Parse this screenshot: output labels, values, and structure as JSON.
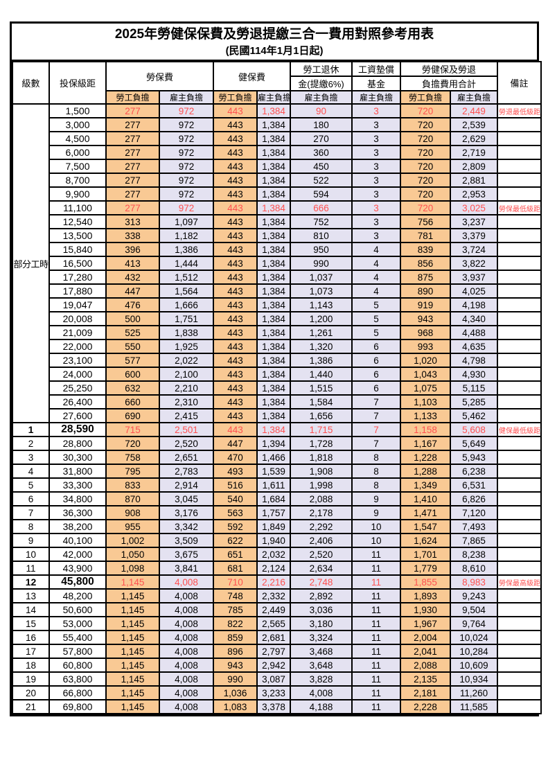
{
  "title": {
    "main": "2025年勞健保保費及勞退提繳三合一費用對照參考用表",
    "sub": "(民國114年1月1日起)"
  },
  "colors": {
    "employee_column_bg": "#F9C994",
    "employer_column_bg": "#E4E2F1",
    "highlight_red": "#FF5050",
    "grid_border": "#000000"
  },
  "table": {
    "header": {
      "level": "級數",
      "bracket": "投保級距",
      "labor_insurance": "勞保費",
      "health_insurance": "健保費",
      "pension_line1": "勞工退休",
      "pension_line2": "金(提繳6%)",
      "wage_fund_line1": "工資墊償",
      "wage_fund_line2": "基金",
      "total_line1": "勞健保及勞退",
      "total_line2": "負擔費用合計",
      "employee_burden": "勞工負擔",
      "employer_burden": "雇主負擔",
      "remark": "備註"
    },
    "part_time_label": "部分工時",
    "rows": [
      {
        "level": "",
        "bracket": "1,500",
        "li_emp": "277",
        "li_er": "972",
        "hi_emp": "443",
        "hi_er": "1,384",
        "pension": "90",
        "fund": "3",
        "tot_emp": "720",
        "tot_er": "2,449",
        "remark": "勞退最低級距",
        "red": true,
        "emph": false
      },
      {
        "level": "",
        "bracket": "3,000",
        "li_emp": "277",
        "li_er": "972",
        "hi_emp": "443",
        "hi_er": "1,384",
        "pension": "180",
        "fund": "3",
        "tot_emp": "720",
        "tot_er": "2,539",
        "remark": "",
        "red": false,
        "emph": false
      },
      {
        "level": "",
        "bracket": "4,500",
        "li_emp": "277",
        "li_er": "972",
        "hi_emp": "443",
        "hi_er": "1,384",
        "pension": "270",
        "fund": "3",
        "tot_emp": "720",
        "tot_er": "2,629",
        "remark": "",
        "red": false,
        "emph": false
      },
      {
        "level": "",
        "bracket": "6,000",
        "li_emp": "277",
        "li_er": "972",
        "hi_emp": "443",
        "hi_er": "1,384",
        "pension": "360",
        "fund": "3",
        "tot_emp": "720",
        "tot_er": "2,719",
        "remark": "",
        "red": false,
        "emph": false
      },
      {
        "level": "",
        "bracket": "7,500",
        "li_emp": "277",
        "li_er": "972",
        "hi_emp": "443",
        "hi_er": "1,384",
        "pension": "450",
        "fund": "3",
        "tot_emp": "720",
        "tot_er": "2,809",
        "remark": "",
        "red": false,
        "emph": false
      },
      {
        "level": "",
        "bracket": "8,700",
        "li_emp": "277",
        "li_er": "972",
        "hi_emp": "443",
        "hi_er": "1,384",
        "pension": "522",
        "fund": "3",
        "tot_emp": "720",
        "tot_er": "2,881",
        "remark": "",
        "red": false,
        "emph": false
      },
      {
        "level": "",
        "bracket": "9,900",
        "li_emp": "277",
        "li_er": "972",
        "hi_emp": "443",
        "hi_er": "1,384",
        "pension": "594",
        "fund": "3",
        "tot_emp": "720",
        "tot_er": "2,953",
        "remark": "",
        "red": false,
        "emph": false
      },
      {
        "level": "",
        "bracket": "11,100",
        "li_emp": "277",
        "li_er": "972",
        "hi_emp": "443",
        "hi_er": "1,384",
        "pension": "666",
        "fund": "3",
        "tot_emp": "720",
        "tot_er": "3,025",
        "remark": "勞保最低級距",
        "red": true,
        "emph": false
      },
      {
        "level": "",
        "bracket": "12,540",
        "li_emp": "313",
        "li_er": "1,097",
        "hi_emp": "443",
        "hi_er": "1,384",
        "pension": "752",
        "fund": "3",
        "tot_emp": "756",
        "tot_er": "3,237",
        "remark": "",
        "red": false,
        "emph": false
      },
      {
        "level": "",
        "bracket": "13,500",
        "li_emp": "338",
        "li_er": "1,182",
        "hi_emp": "443",
        "hi_er": "1,384",
        "pension": "810",
        "fund": "3",
        "tot_emp": "781",
        "tot_er": "3,379",
        "remark": "",
        "red": false,
        "emph": false
      },
      {
        "level": "",
        "bracket": "15,840",
        "li_emp": "396",
        "li_er": "1,386",
        "hi_emp": "443",
        "hi_er": "1,384",
        "pension": "950",
        "fund": "4",
        "tot_emp": "839",
        "tot_er": "3,724",
        "remark": "",
        "red": false,
        "emph": false
      },
      {
        "level": "",
        "bracket": "16,500",
        "li_emp": "413",
        "li_er": "1,444",
        "hi_emp": "443",
        "hi_er": "1,384",
        "pension": "990",
        "fund": "4",
        "tot_emp": "856",
        "tot_er": "3,822",
        "remark": "",
        "red": false,
        "emph": false
      },
      {
        "level": "",
        "bracket": "17,280",
        "li_emp": "432",
        "li_er": "1,512",
        "hi_emp": "443",
        "hi_er": "1,384",
        "pension": "1,037",
        "fund": "4",
        "tot_emp": "875",
        "tot_er": "3,937",
        "remark": "",
        "red": false,
        "emph": false
      },
      {
        "level": "",
        "bracket": "17,880",
        "li_emp": "447",
        "li_er": "1,564",
        "hi_emp": "443",
        "hi_er": "1,384",
        "pension": "1,073",
        "fund": "4",
        "tot_emp": "890",
        "tot_er": "4,025",
        "remark": "",
        "red": false,
        "emph": false
      },
      {
        "level": "",
        "bracket": "19,047",
        "li_emp": "476",
        "li_er": "1,666",
        "hi_emp": "443",
        "hi_er": "1,384",
        "pension": "1,143",
        "fund": "5",
        "tot_emp": "919",
        "tot_er": "4,198",
        "remark": "",
        "red": false,
        "emph": false
      },
      {
        "level": "",
        "bracket": "20,008",
        "li_emp": "500",
        "li_er": "1,751",
        "hi_emp": "443",
        "hi_er": "1,384",
        "pension": "1,200",
        "fund": "5",
        "tot_emp": "943",
        "tot_er": "4,340",
        "remark": "",
        "red": false,
        "emph": false
      },
      {
        "level": "",
        "bracket": "21,009",
        "li_emp": "525",
        "li_er": "1,838",
        "hi_emp": "443",
        "hi_er": "1,384",
        "pension": "1,261",
        "fund": "5",
        "tot_emp": "968",
        "tot_er": "4,488",
        "remark": "",
        "red": false,
        "emph": false
      },
      {
        "level": "",
        "bracket": "22,000",
        "li_emp": "550",
        "li_er": "1,925",
        "hi_emp": "443",
        "hi_er": "1,384",
        "pension": "1,320",
        "fund": "6",
        "tot_emp": "993",
        "tot_er": "4,635",
        "remark": "",
        "red": false,
        "emph": false
      },
      {
        "level": "",
        "bracket": "23,100",
        "li_emp": "577",
        "li_er": "2,022",
        "hi_emp": "443",
        "hi_er": "1,384",
        "pension": "1,386",
        "fund": "6",
        "tot_emp": "1,020",
        "tot_er": "4,798",
        "remark": "",
        "red": false,
        "emph": false
      },
      {
        "level": "",
        "bracket": "24,000",
        "li_emp": "600",
        "li_er": "2,100",
        "hi_emp": "443",
        "hi_er": "1,384",
        "pension": "1,440",
        "fund": "6",
        "tot_emp": "1,043",
        "tot_er": "4,930",
        "remark": "",
        "red": false,
        "emph": false
      },
      {
        "level": "",
        "bracket": "25,250",
        "li_emp": "632",
        "li_er": "2,210",
        "hi_emp": "443",
        "hi_er": "1,384",
        "pension": "1,515",
        "fund": "6",
        "tot_emp": "1,075",
        "tot_er": "5,115",
        "remark": "",
        "red": false,
        "emph": false
      },
      {
        "level": "",
        "bracket": "26,400",
        "li_emp": "660",
        "li_er": "2,310",
        "hi_emp": "443",
        "hi_er": "1,384",
        "pension": "1,584",
        "fund": "7",
        "tot_emp": "1,103",
        "tot_er": "5,285",
        "remark": "",
        "red": false,
        "emph": false
      },
      {
        "level": "",
        "bracket": "27,600",
        "li_emp": "690",
        "li_er": "2,415",
        "hi_emp": "443",
        "hi_er": "1,384",
        "pension": "1,656",
        "fund": "7",
        "tot_emp": "1,133",
        "tot_er": "5,462",
        "remark": "",
        "red": false,
        "emph": false
      },
      {
        "level": "1",
        "bracket": "28,590",
        "li_emp": "715",
        "li_er": "2,501",
        "hi_emp": "443",
        "hi_er": "1,384",
        "pension": "1,715",
        "fund": "7",
        "tot_emp": "1,158",
        "tot_er": "5,608",
        "remark": "健保最低級距",
        "red": true,
        "emph": true
      },
      {
        "level": "2",
        "bracket": "28,800",
        "li_emp": "720",
        "li_er": "2,520",
        "hi_emp": "447",
        "hi_er": "1,394",
        "pension": "1,728",
        "fund": "7",
        "tot_emp": "1,167",
        "tot_er": "5,649",
        "remark": "",
        "red": false,
        "emph": false
      },
      {
        "level": "3",
        "bracket": "30,300",
        "li_emp": "758",
        "li_er": "2,651",
        "hi_emp": "470",
        "hi_er": "1,466",
        "pension": "1,818",
        "fund": "8",
        "tot_emp": "1,228",
        "tot_er": "5,943",
        "remark": "",
        "red": false,
        "emph": false
      },
      {
        "level": "4",
        "bracket": "31,800",
        "li_emp": "795",
        "li_er": "2,783",
        "hi_emp": "493",
        "hi_er": "1,539",
        "pension": "1,908",
        "fund": "8",
        "tot_emp": "1,288",
        "tot_er": "6,238",
        "remark": "",
        "red": false,
        "emph": false
      },
      {
        "level": "5",
        "bracket": "33,300",
        "li_emp": "833",
        "li_er": "2,914",
        "hi_emp": "516",
        "hi_er": "1,611",
        "pension": "1,998",
        "fund": "8",
        "tot_emp": "1,349",
        "tot_er": "6,531",
        "remark": "",
        "red": false,
        "emph": false
      },
      {
        "level": "6",
        "bracket": "34,800",
        "li_emp": "870",
        "li_er": "3,045",
        "hi_emp": "540",
        "hi_er": "1,684",
        "pension": "2,088",
        "fund": "9",
        "tot_emp": "1,410",
        "tot_er": "6,826",
        "remark": "",
        "red": false,
        "emph": false
      },
      {
        "level": "7",
        "bracket": "36,300",
        "li_emp": "908",
        "li_er": "3,176",
        "hi_emp": "563",
        "hi_er": "1,757",
        "pension": "2,178",
        "fund": "9",
        "tot_emp": "1,471",
        "tot_er": "7,120",
        "remark": "",
        "red": false,
        "emph": false
      },
      {
        "level": "8",
        "bracket": "38,200",
        "li_emp": "955",
        "li_er": "3,342",
        "hi_emp": "592",
        "hi_er": "1,849",
        "pension": "2,292",
        "fund": "10",
        "tot_emp": "1,547",
        "tot_er": "7,493",
        "remark": "",
        "red": false,
        "emph": false
      },
      {
        "level": "9",
        "bracket": "40,100",
        "li_emp": "1,002",
        "li_er": "3,509",
        "hi_emp": "622",
        "hi_er": "1,940",
        "pension": "2,406",
        "fund": "10",
        "tot_emp": "1,624",
        "tot_er": "7,865",
        "remark": "",
        "red": false,
        "emph": false
      },
      {
        "level": "10",
        "bracket": "42,000",
        "li_emp": "1,050",
        "li_er": "3,675",
        "hi_emp": "651",
        "hi_er": "2,032",
        "pension": "2,520",
        "fund": "11",
        "tot_emp": "1,701",
        "tot_er": "8,238",
        "remark": "",
        "red": false,
        "emph": false
      },
      {
        "level": "11",
        "bracket": "43,900",
        "li_emp": "1,098",
        "li_er": "3,841",
        "hi_emp": "681",
        "hi_er": "2,124",
        "pension": "2,634",
        "fund": "11",
        "tot_emp": "1,779",
        "tot_er": "8,610",
        "remark": "",
        "red": false,
        "emph": false
      },
      {
        "level": "12",
        "bracket": "45,800",
        "li_emp": "1,145",
        "li_er": "4,008",
        "hi_emp": "710",
        "hi_er": "2,216",
        "pension": "2,748",
        "fund": "11",
        "tot_emp": "1,855",
        "tot_er": "8,983",
        "remark": "勞保最高級距",
        "red": true,
        "emph": true
      },
      {
        "level": "13",
        "bracket": "48,200",
        "li_emp": "1,145",
        "li_er": "4,008",
        "hi_emp": "748",
        "hi_er": "2,332",
        "pension": "2,892",
        "fund": "11",
        "tot_emp": "1,893",
        "tot_er": "9,243",
        "remark": "",
        "red": false,
        "emph": false
      },
      {
        "level": "14",
        "bracket": "50,600",
        "li_emp": "1,145",
        "li_er": "4,008",
        "hi_emp": "785",
        "hi_er": "2,449",
        "pension": "3,036",
        "fund": "11",
        "tot_emp": "1,930",
        "tot_er": "9,504",
        "remark": "",
        "red": false,
        "emph": false
      },
      {
        "level": "15",
        "bracket": "53,000",
        "li_emp": "1,145",
        "li_er": "4,008",
        "hi_emp": "822",
        "hi_er": "2,565",
        "pension": "3,180",
        "fund": "11",
        "tot_emp": "1,967",
        "tot_er": "9,764",
        "remark": "",
        "red": false,
        "emph": false
      },
      {
        "level": "16",
        "bracket": "55,400",
        "li_emp": "1,145",
        "li_er": "4,008",
        "hi_emp": "859",
        "hi_er": "2,681",
        "pension": "3,324",
        "fund": "11",
        "tot_emp": "2,004",
        "tot_er": "10,024",
        "remark": "",
        "red": false,
        "emph": false
      },
      {
        "level": "17",
        "bracket": "57,800",
        "li_emp": "1,145",
        "li_er": "4,008",
        "hi_emp": "896",
        "hi_er": "2,797",
        "pension": "3,468",
        "fund": "11",
        "tot_emp": "2,041",
        "tot_er": "10,284",
        "remark": "",
        "red": false,
        "emph": false
      },
      {
        "level": "18",
        "bracket": "60,800",
        "li_emp": "1,145",
        "li_er": "4,008",
        "hi_emp": "943",
        "hi_er": "2,942",
        "pension": "3,648",
        "fund": "11",
        "tot_emp": "2,088",
        "tot_er": "10,609",
        "remark": "",
        "red": false,
        "emph": false
      },
      {
        "level": "19",
        "bracket": "63,800",
        "li_emp": "1,145",
        "li_er": "4,008",
        "hi_emp": "990",
        "hi_er": "3,087",
        "pension": "3,828",
        "fund": "11",
        "tot_emp": "2,135",
        "tot_er": "10,934",
        "remark": "",
        "red": false,
        "emph": false
      },
      {
        "level": "20",
        "bracket": "66,800",
        "li_emp": "1,145",
        "li_er": "4,008",
        "hi_emp": "1,036",
        "hi_er": "3,233",
        "pension": "4,008",
        "fund": "11",
        "tot_emp": "2,181",
        "tot_er": "11,260",
        "remark": "",
        "red": false,
        "emph": false
      },
      {
        "level": "21",
        "bracket": "69,800",
        "li_emp": "1,145",
        "li_er": "4,008",
        "hi_emp": "1,083",
        "hi_er": "3,378",
        "pension": "4,188",
        "fund": "11",
        "tot_emp": "2,228",
        "tot_er": "11,585",
        "remark": "",
        "red": false,
        "emph": false
      }
    ]
  }
}
